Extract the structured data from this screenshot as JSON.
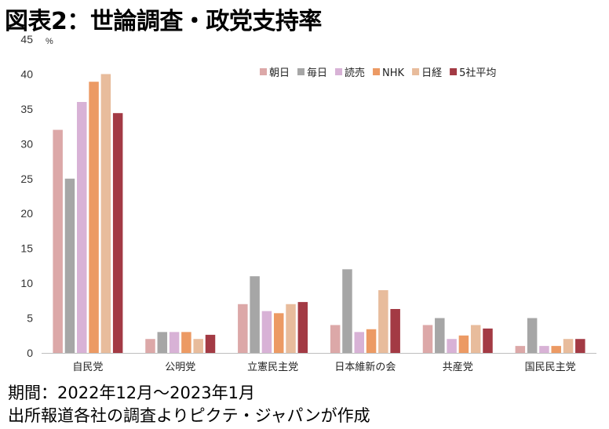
{
  "title": "図表2：世論調査・政党支持率",
  "notes": {
    "period": "期間：2022年12月～2023年1月",
    "source": "出所報道各社の調査よりピクテ・ジャパンが作成"
  },
  "chart_data": {
    "type": "bar",
    "unit_label": "%",
    "categories": [
      "自民党",
      "公明党",
      "立憲民主党",
      "日本維新の会",
      "共産党",
      "国民民主党"
    ],
    "series": [
      {
        "name": "朝日",
        "color": "#dca8a8",
        "values": [
          32,
          2,
          7,
          4,
          4,
          1
        ]
      },
      {
        "name": "毎日",
        "color": "#a6a6a6",
        "values": [
          25,
          3,
          11,
          12,
          5,
          5
        ]
      },
      {
        "name": "読売",
        "color": "#d8b2d6",
        "values": [
          36,
          3,
          6,
          3,
          2,
          1
        ]
      },
      {
        "name": "NHK",
        "color": "#ec9a64",
        "values": [
          38.9,
          3,
          5.7,
          3.4,
          2.5,
          1
        ]
      },
      {
        "name": "日経",
        "color": "#e8bc9c",
        "values": [
          40,
          2,
          7,
          9,
          4,
          2
        ]
      },
      {
        "name": "5社平均",
        "color": "#a33a44",
        "values": [
          34.4,
          2.6,
          7.3,
          6.3,
          3.5,
          2
        ]
      }
    ],
    "y_ticks": [
      "0",
      "5",
      "10",
      "15",
      "20",
      "25",
      "30",
      "35",
      "40",
      "45"
    ],
    "ylim": [
      0,
      45
    ],
    "grid": false,
    "legend_position": "top-right"
  }
}
